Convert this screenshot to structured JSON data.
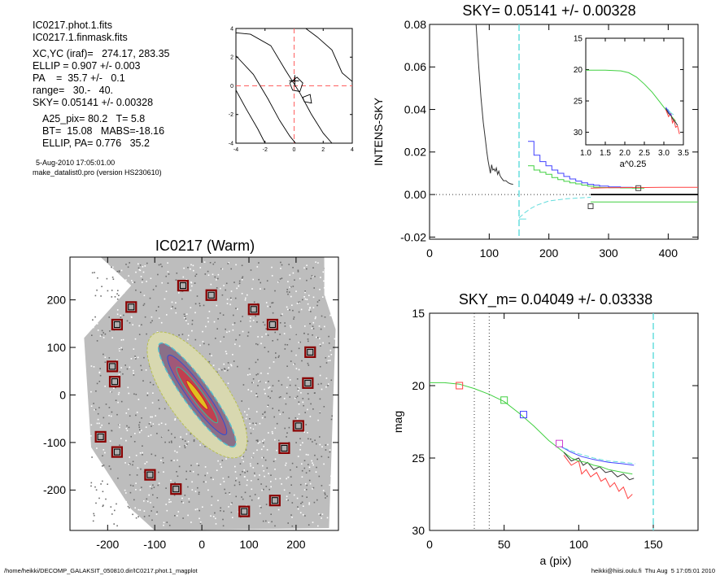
{
  "info_lines": [
    "IC0217.phot.1.fits",
    "IC0217.1.finmask.fits",
    "XC,YC (iraf)=   274.17, 283.35",
    "ELLIP = 0.907 +/- 0.003",
    "PA    =  35.7 +/-   0.1",
    "range=   30.-   40.",
    "SKY= 0.05141 +/- 0.00328",
    "A25_pix= 80.2   T= 5.8",
    "BT=  15.08   MABS=-18.16",
    "ELLIP, PA= 0.776   35.2",
    "5-Aug-2010 17:05:01.00",
    "make_datalist0.pro (version HS230610)"
  ],
  "footer": {
    "left": "/home/heikki/DECOMP_GALAKSIT_050810.dir/IC0217.phot.1_magplot",
    "right": "heikki@hiisi.oulu.fi  Thu Aug  5 17:05:01 2010"
  },
  "chart_data": [
    {
      "type": "line",
      "panel": "contour-inset",
      "title": "",
      "xlim": [
        -4,
        4
      ],
      "ylim": [
        -4,
        4
      ],
      "xticks": [
        "-4",
        "-2",
        "0",
        "2",
        "4"
      ],
      "yticks": [
        "-4",
        "-2",
        "0",
        "2",
        "4"
      ],
      "center_lines": {
        "x": 0,
        "y": 0,
        "color": "#ff6060"
      },
      "contours": [
        [
          [
            -4,
            3.7
          ],
          [
            -3,
            3.6
          ],
          [
            -1.6,
            2.8
          ],
          [
            -0.6,
            1.1
          ],
          [
            0.4,
            -0.5
          ],
          [
            1.2,
            -2.0
          ],
          [
            2,
            -3.3
          ],
          [
            2.6,
            -4
          ]
        ],
        [
          [
            -4,
            2.1
          ],
          [
            -2.8,
            0.8
          ],
          [
            -1.8,
            -0.9
          ],
          [
            -1,
            -2.4
          ],
          [
            -0.3,
            -3.5
          ],
          [
            0.1,
            -4
          ]
        ],
        [
          [
            -4,
            -0.3
          ],
          [
            -3.3,
            -1.6
          ],
          [
            -2.5,
            -3.0
          ],
          [
            -2,
            -4
          ]
        ],
        [
          [
            0.8,
            4
          ],
          [
            1.6,
            3.4
          ],
          [
            2.6,
            2.5
          ],
          [
            3.3,
            0.9
          ],
          [
            4,
            0.3
          ]
        ],
        [
          [
            -0.3,
            0.2
          ],
          [
            0.2,
            0.6
          ],
          [
            0.6,
            0.2
          ],
          [
            0.4,
            -0.4
          ],
          [
            -0.1,
            -0.3
          ],
          [
            -0.3,
            0.2
          ]
        ],
        [
          [
            0.6,
            -0.8
          ],
          [
            1.1,
            -0.6
          ],
          [
            1.2,
            -1.2
          ],
          [
            0.7,
            -1.1
          ],
          [
            0.6,
            -0.8
          ]
        ]
      ]
    },
    {
      "type": "line",
      "panel": "sky-profile",
      "title": "SKY= 0.05141 +/- 0.00328",
      "xlabel": "",
      "ylabel": "INTENS-SKY",
      "xlim": [
        0,
        450
      ],
      "ylim": [
        -0.021,
        0.08
      ],
      "xticks": [
        "0",
        "100",
        "200",
        "300",
        "400"
      ],
      "yticks": [
        "-0.02",
        "0.00",
        "0.02",
        "0.04",
        "0.06",
        "0.08"
      ],
      "vline_dashed": {
        "x": 150,
        "color": "#66dddd"
      },
      "series": [
        {
          "color": "#333333",
          "x": [
            78,
            82,
            86,
            90,
            94,
            96,
            98,
            100,
            102,
            104,
            106,
            108,
            110,
            112,
            114,
            116,
            118,
            120,
            124,
            128,
            132,
            136,
            140
          ],
          "y": [
            0.08,
            0.062,
            0.046,
            0.034,
            0.025,
            0.02,
            0.016,
            0.013,
            0.01,
            0.014,
            0.0115,
            0.012,
            0.011,
            0.0125,
            0.0095,
            0.011,
            0.009,
            0.008,
            0.0065,
            0.0065,
            0.0055,
            0.005,
            0.0048
          ]
        },
        {
          "color": "#4040ff",
          "step": true,
          "x": [
            165,
            175,
            185,
            195,
            205,
            215,
            225,
            235,
            245,
            255,
            265,
            275,
            285,
            300,
            320,
            340,
            360
          ],
          "y": [
            0.025,
            0.0185,
            0.0155,
            0.0135,
            0.0115,
            0.01,
            0.0085,
            0.0073,
            0.0063,
            0.0055,
            0.0048,
            0.0044,
            0.004,
            0.0036,
            0.0034,
            0.0033,
            0.0033
          ]
        },
        {
          "color": "#40d040",
          "step": true,
          "x": [
            165,
            175,
            185,
            195,
            205,
            215,
            225,
            235,
            245,
            255,
            265,
            275,
            285,
            300,
            320,
            340,
            360
          ],
          "y": [
            0.0135,
            0.0115,
            0.0105,
            0.0095,
            0.008,
            0.007,
            0.0062,
            0.0055,
            0.005,
            0.0044,
            0.0039,
            0.0035,
            0.0033,
            0.0032,
            0.0031,
            0.003,
            0.003
          ]
        },
        {
          "color": "#ff4040",
          "x": [
            270,
            300,
            330,
            360,
            390,
            420,
            450
          ],
          "y": [
            0.003,
            0.0032,
            0.0033,
            0.0033,
            0.0034,
            0.0034,
            0.0034
          ]
        },
        {
          "color": "#000000",
          "x": [
            270,
            450
          ],
          "y": [
            0.0,
            0.0
          ]
        },
        {
          "color": "#40d040",
          "x": [
            270,
            450
          ],
          "y": [
            -0.0035,
            -0.0035
          ]
        },
        {
          "color": "#66dddd",
          "x": [
            150,
            160,
            170,
            180,
            190,
            200,
            215,
            230,
            250,
            270
          ],
          "y": [
            -0.011,
            -0.0085,
            -0.0065,
            -0.005,
            -0.004,
            -0.003,
            -0.0025,
            -0.002,
            -0.0016,
            -0.0013
          ]
        },
        {
          "color": "#66dddd",
          "x": [
            150,
            162
          ],
          "y": [
            -0.0115,
            -0.0115
          ]
        }
      ],
      "zero_line": {
        "y": 0,
        "style": "dotted"
      },
      "markers": [
        {
          "x": 350,
          "y": 0.003,
          "color": "#404040"
        },
        {
          "x": 270,
          "y": -0.0055,
          "color": "#404040"
        }
      ]
    },
    {
      "type": "line",
      "panel": "sky-inset",
      "title": "",
      "xlabel": "a^0.25",
      "xlim": [
        1.0,
        3.5
      ],
      "ylim": [
        15,
        32
      ],
      "xticks": [
        "1.0",
        "1.5",
        "2.0",
        "2.5",
        "3.0",
        "3.5"
      ],
      "yticks": [
        "15",
        "20",
        "25",
        "30"
      ],
      "series": [
        {
          "color": "#40d040",
          "x": [
            1.0,
            1.5,
            1.9,
            2.1,
            2.3,
            2.5,
            2.7,
            2.9,
            3.0,
            3.1,
            3.2,
            3.3
          ],
          "y": [
            20.1,
            20.1,
            20.2,
            20.5,
            21.2,
            22.3,
            23.6,
            25.2,
            26.0,
            26.8,
            27.5,
            28.2
          ]
        },
        {
          "color": "#ff4040",
          "x": [
            3.05,
            3.12,
            3.18,
            3.22,
            3.26,
            3.3,
            3.35,
            3.4
          ],
          "y": [
            26.4,
            27.5,
            27.0,
            28.5,
            28.0,
            29.2,
            29.0,
            30.3
          ]
        },
        {
          "color": "#333333",
          "x": [
            3.05,
            3.12,
            3.18,
            3.24,
            3.3,
            3.35
          ],
          "y": [
            26.2,
            27.0,
            27.3,
            28.0,
            28.4,
            28.9
          ]
        },
        {
          "color": "#4040ff",
          "x": [
            3.05,
            3.1,
            3.15,
            3.2
          ],
          "y": [
            26.0,
            26.5,
            27.0,
            27.3
          ]
        },
        {
          "color": "#66dddd",
          "x": [
            3.1,
            3.15,
            3.2,
            3.25
          ],
          "y": [
            26.3,
            26.7,
            27.0,
            27.2
          ]
        }
      ]
    },
    {
      "type": "scatter",
      "panel": "galaxy-image",
      "title": "IC0217 (Warm)",
      "xlim": [
        -280,
        290
      ],
      "ylim": [
        -285,
        290
      ],
      "xticks": [
        "-200",
        "-100",
        "0",
        "100",
        "200"
      ],
      "yticks": [
        "-200",
        "-100",
        "0",
        "100",
        "200"
      ],
      "sky_boxes": [
        [
          -40,
          230
        ],
        [
          20,
          210
        ],
        [
          -150,
          185
        ],
        [
          -180,
          148
        ],
        [
          110,
          180
        ],
        [
          150,
          148
        ],
        [
          230,
          90
        ],
        [
          -190,
          60
        ],
        [
          -185,
          28
        ],
        [
          225,
          25
        ],
        [
          205,
          -65
        ],
        [
          -215,
          -88
        ],
        [
          -180,
          -120
        ],
        [
          -110,
          -168
        ],
        [
          -55,
          -198
        ],
        [
          175,
          -112
        ],
        [
          155,
          -222
        ],
        [
          90,
          -245
        ]
      ]
    },
    {
      "type": "line",
      "panel": "mag-profile",
      "title": "SKY_m=  0.04049 +/- 0.03338",
      "xlabel": "a (pix)",
      "ylabel": "mag",
      "xlim": [
        0,
        180
      ],
      "ylim": [
        30,
        15
      ],
      "xticks": [
        "0",
        "50",
        "100",
        "150"
      ],
      "yticks": [
        "15",
        "20",
        "25",
        "30"
      ],
      "vlines_dotted": [
        30,
        40
      ],
      "vline_dashed": {
        "x": 150,
        "color": "#66dddd"
      },
      "series": [
        {
          "color": "#40d040",
          "x": [
            0,
            10,
            20,
            30,
            40,
            50,
            60,
            70,
            80,
            90,
            95
          ],
          "y": [
            19.8,
            19.8,
            19.9,
            20.2,
            20.6,
            21.1,
            21.9,
            22.8,
            23.8,
            24.6,
            25.0
          ]
        },
        {
          "color": "#ff4040",
          "x": [
            90,
            95,
            100,
            102,
            105,
            108,
            112,
            115,
            118,
            121,
            124,
            127,
            130,
            133,
            136
          ],
          "y": [
            24.8,
            25.5,
            25.2,
            26.1,
            25.8,
            26.3,
            26.0,
            26.6,
            26.4,
            27.0,
            26.7,
            27.3,
            27.0,
            27.8,
            27.5
          ]
        },
        {
          "color": "#333333",
          "x": [
            90,
            95,
            100,
            103,
            106,
            110,
            114,
            118,
            122,
            126,
            130,
            134,
            137
          ],
          "y": [
            24.6,
            25.2,
            25.0,
            25.5,
            25.3,
            25.8,
            25.6,
            26.0,
            25.9,
            26.3,
            26.1,
            26.5,
            26.4
          ]
        },
        {
          "color": "#40d040",
          "x": [
            95,
            100,
            105,
            110,
            115,
            120,
            125,
            130,
            136
          ],
          "y": [
            25.0,
            25.2,
            25.3,
            25.5,
            25.6,
            25.8,
            25.9,
            26.0,
            26.1
          ]
        },
        {
          "color": "#4040ff",
          "x": [
            88,
            95,
            102,
            110,
            120,
            130,
            137
          ],
          "y": [
            24.2,
            24.6,
            24.9,
            25.1,
            25.3,
            25.4,
            25.5
          ]
        },
        {
          "color": "#66dddd",
          "x": [
            90,
            100,
            110,
            120,
            130,
            138
          ],
          "y": [
            24.3,
            24.7,
            25.0,
            25.2,
            25.3,
            25.4
          ]
        }
      ],
      "markers": [
        {
          "x": 20,
          "y": 20.0,
          "color": "#ff4040"
        },
        {
          "x": 50,
          "y": 21.0,
          "color": "#40d040"
        },
        {
          "x": 63,
          "y": 22.0,
          "color": "#4040ff"
        },
        {
          "x": 87,
          "y": 24.0,
          "color": "#d040d0"
        }
      ]
    }
  ]
}
